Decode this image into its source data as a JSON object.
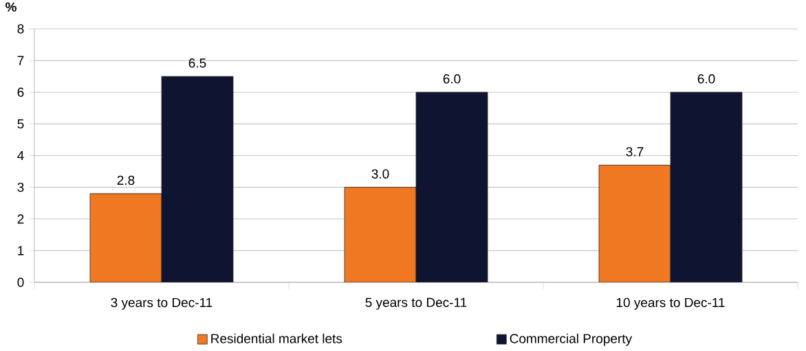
{
  "chart_data": {
    "type": "bar",
    "ylabel": "%",
    "categories": [
      "3 years to Dec-11",
      "5 years to Dec-11",
      "10 years to Dec-11"
    ],
    "series": [
      {
        "name": "Residential market lets",
        "color": "#f07823",
        "values": [
          2.8,
          3.0,
          3.7
        ],
        "value_labels": [
          "2.8",
          "3.0",
          "3.7"
        ]
      },
      {
        "name": "Commercial Property",
        "color": "#0f1530",
        "values": [
          6.5,
          6.0,
          6.0
        ],
        "value_labels": [
          "6.5",
          "6.0",
          "6.0"
        ]
      }
    ],
    "ylim": [
      0,
      8
    ],
    "yticks": [
      0,
      1,
      2,
      3,
      4,
      5,
      6,
      7,
      8
    ],
    "grid": "y",
    "legend": "bottom"
  }
}
